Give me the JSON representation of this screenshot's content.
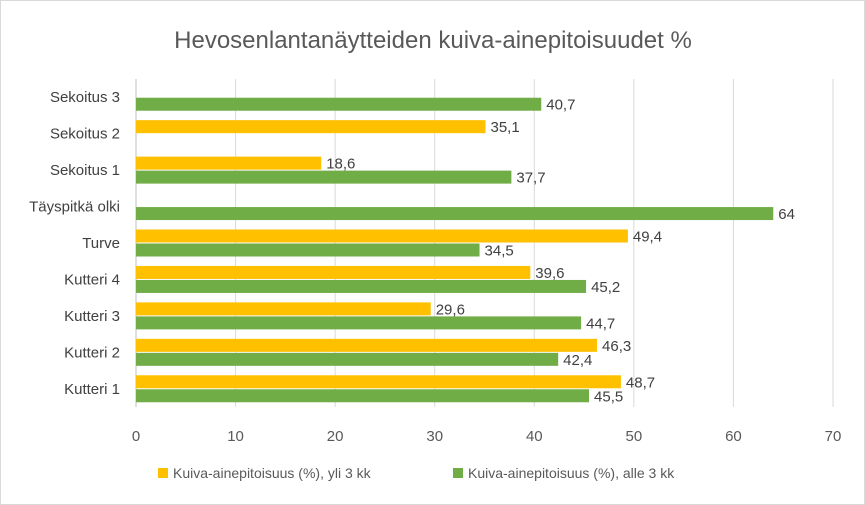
{
  "chart_data": {
    "type": "bar",
    "orientation": "horizontal",
    "title": "Hevosenlantanäytteiden kuiva-ainepitoisuudet %",
    "xlabel": "",
    "ylabel": "",
    "xlim": [
      0,
      70
    ],
    "x_ticks": [
      0,
      10,
      20,
      30,
      40,
      50,
      60,
      70
    ],
    "x_tick_labels": [
      "0",
      "10",
      "20",
      "30",
      "40",
      "50",
      "60",
      "70"
    ],
    "grid": "vertical",
    "legend_position": "bottom",
    "categories": [
      "Kutteri 1",
      "Kutteri 2",
      "Kutteri 3",
      "Kutteri 4",
      "Turve",
      "Täyspitkä olki",
      "Sekoitus 1",
      "Sekoitus 2",
      "Sekoitus 3"
    ],
    "series": [
      {
        "name": "Kuiva-ainepitoisuus (%), yli 3 kk",
        "color": "#FFC000",
        "values": [
          48.7,
          46.3,
          29.6,
          39.6,
          49.4,
          null,
          18.6,
          35.1,
          null
        ],
        "labels": [
          "48,7",
          "46,3",
          "29,6",
          "39,6",
          "49,4",
          "",
          "18,6",
          "35,1",
          ""
        ]
      },
      {
        "name": "Kuiva-ainepitoisuus (%), alle 3 kk",
        "color": "#70AD47",
        "values": [
          45.5,
          42.4,
          44.7,
          45.2,
          34.5,
          64,
          37.7,
          null,
          40.7
        ],
        "labels": [
          "45,5",
          "42,4",
          "44,7",
          "45,2",
          "34,5",
          "64",
          "37,7",
          "",
          "40,7"
        ]
      }
    ]
  }
}
